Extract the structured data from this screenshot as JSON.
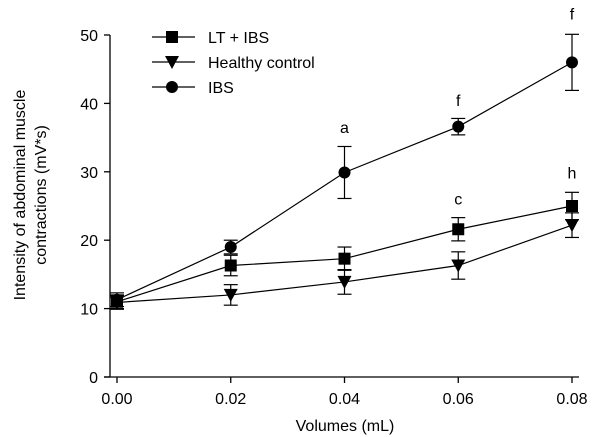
{
  "chart_data": {
    "type": "line",
    "xlabel": "Volumes (mL)",
    "ylabel_lines": [
      "Intensity of abdominal muscle",
      "contractions (mV*s)"
    ],
    "x": [
      0.0,
      0.02,
      0.04,
      0.06,
      0.08
    ],
    "x_tick_labels": [
      "0.00",
      "0.02",
      "0.04",
      "0.06",
      "0.08"
    ],
    "xlim": [
      0.0,
      0.08
    ],
    "ylim": [
      0,
      50
    ],
    "y_ticks": [
      0,
      10,
      20,
      30,
      40,
      50
    ],
    "y_tick_labels": [
      "0",
      "10",
      "20",
      "30",
      "40",
      "50"
    ],
    "grid": false,
    "legend_position": "top-left",
    "series": [
      {
        "name": "LT + IBS",
        "marker": "square",
        "values": [
          11.0,
          16.3,
          17.3,
          21.6,
          25.0
        ],
        "errors": [
          1.0,
          1.5,
          1.7,
          1.7,
          2.0
        ]
      },
      {
        "name": "Healthy control",
        "marker": "triangle-down",
        "values": [
          10.9,
          12.0,
          13.9,
          16.3,
          22.2
        ],
        "errors": [
          1.0,
          1.5,
          1.8,
          2.0,
          1.8
        ]
      },
      {
        "name": "IBS",
        "marker": "circle",
        "values": [
          11.3,
          19.0,
          29.9,
          36.6,
          46.0
        ],
        "errors": [
          1.0,
          1.0,
          3.8,
          1.2,
          4.1
        ]
      }
    ],
    "annotations": [
      {
        "text": "a",
        "x": 0.04,
        "y": 35.7
      },
      {
        "text": "f",
        "x": 0.06,
        "y": 39.6
      },
      {
        "text": "f",
        "x": 0.08,
        "y": 52.3
      },
      {
        "text": "c",
        "x": 0.06,
        "y": 25.2
      },
      {
        "text": "h",
        "x": 0.08,
        "y": 29.0
      }
    ]
  }
}
